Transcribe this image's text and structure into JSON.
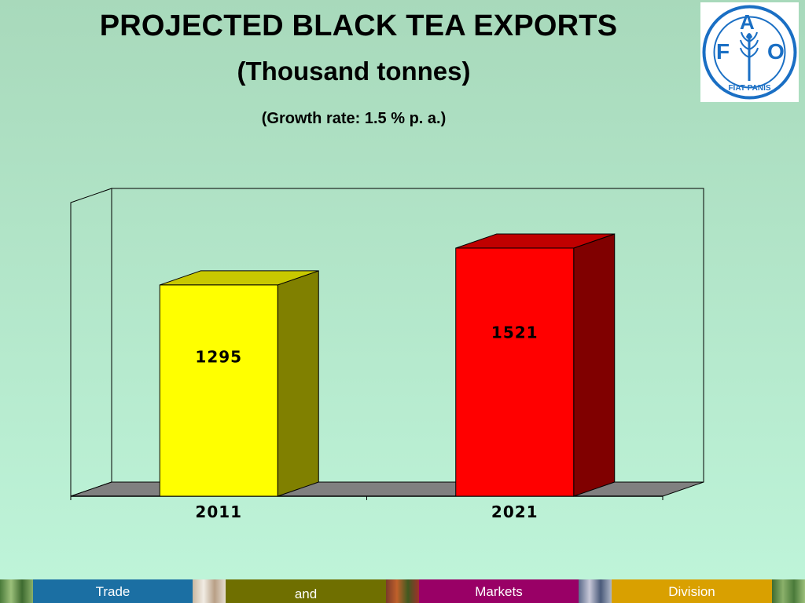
{
  "header": {
    "title": "PROJECTED BLACK TEA EXPORTS",
    "subtitle": "(Thousand tonnes)",
    "note": "(Growth rate: 1.5 %  p. a.)"
  },
  "logo": {
    "letters": [
      "F",
      "A",
      "O"
    ],
    "motto": "FIAT PANIS",
    "color": "#1a6fc4"
  },
  "chart_data": {
    "type": "bar",
    "style": "3d",
    "categories": [
      "2011",
      "2021"
    ],
    "values": [
      1295,
      1521
    ],
    "data_labels": [
      "1295",
      "1521"
    ],
    "bar_colors": [
      {
        "front": "#ffff00",
        "top": "#c8c800",
        "side": "#808000"
      },
      {
        "front": "#ff0000",
        "top": "#c00000",
        "side": "#800000"
      }
    ],
    "ylim": [
      0,
      1800
    ],
    "grid": false,
    "legend": "none",
    "floor_color": "#808080"
  },
  "footer": {
    "labels": [
      "Trade",
      "and",
      "Markets",
      "Division"
    ],
    "colors": [
      "#1b6fa3",
      "#6f6f00",
      "#990066",
      "#d9a000"
    ]
  }
}
